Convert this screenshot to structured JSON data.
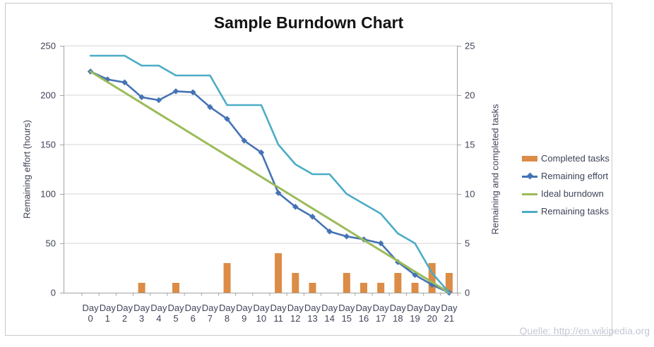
{
  "watermark": "Quelle: http://en.wikipedia.org",
  "chart_data": {
    "type": "combo-bar-line",
    "title": "Sample Burndown Chart",
    "grid": true,
    "legend_position": "right",
    "categories": [
      "Day 0",
      "Day 1",
      "Day 2",
      "Day 3",
      "Day 4",
      "Day 5",
      "Day 6",
      "Day 7",
      "Day 8",
      "Day 9",
      "Day 10",
      "Day 11",
      "Day 12",
      "Day 13",
      "Day 14",
      "Day 15",
      "Day 16",
      "Day 17",
      "Day 18",
      "Day 19",
      "Day 20",
      "Day 21"
    ],
    "y_left": {
      "label": "Remaining effort (hours)",
      "min": 0,
      "max": 250,
      "step": 50,
      "ticks": [
        0,
        50,
        100,
        150,
        200,
        250
      ]
    },
    "y_right": {
      "label": "Remaining and completed tasks",
      "min": 0,
      "max": 25,
      "step": 5,
      "ticks": [
        0,
        5,
        10,
        15,
        20,
        25
      ]
    },
    "series": [
      {
        "name": "Completed tasks",
        "type": "bar",
        "axis": "right",
        "color": "#dc8c46",
        "values": [
          0,
          0,
          0,
          1,
          0,
          1,
          0,
          0,
          3,
          0,
          0,
          4,
          2,
          1,
          0,
          2,
          1,
          1,
          2,
          1,
          3,
          2
        ]
      },
      {
        "name": "Remaining effort",
        "type": "line",
        "axis": "left",
        "marker": "diamond",
        "color": "#4573b4",
        "values": [
          224,
          216,
          213,
          198,
          195,
          204,
          203,
          188,
          176,
          154,
          142,
          101,
          87,
          77,
          62,
          57,
          54,
          50,
          31,
          18,
          8,
          0
        ]
      },
      {
        "name": "Ideal burndown",
        "type": "line",
        "axis": "left",
        "color": "#9bbb59",
        "values": [
          224,
          213.3,
          202.7,
          192,
          181.3,
          170.7,
          160,
          149.3,
          138.7,
          128,
          117.3,
          106.7,
          96,
          85.3,
          74.7,
          64,
          53.3,
          42.7,
          32,
          21.3,
          10.7,
          0
        ]
      },
      {
        "name": "Remaining tasks",
        "type": "line",
        "axis": "right",
        "color": "#4bacc6",
        "values": [
          24,
          24,
          24,
          23,
          23,
          22,
          22,
          22,
          19,
          19,
          19,
          15,
          13,
          12,
          12,
          10,
          9,
          8,
          6,
          5,
          2,
          0
        ]
      }
    ],
    "colors": {
      "gridline": "#d6d6d6",
      "axis": "#a3a3a3",
      "tick_text": "#3f4458",
      "title_text": "#141414",
      "watermark_text": "#c4c7d4",
      "frame_border": "#c9c9cf"
    }
  }
}
